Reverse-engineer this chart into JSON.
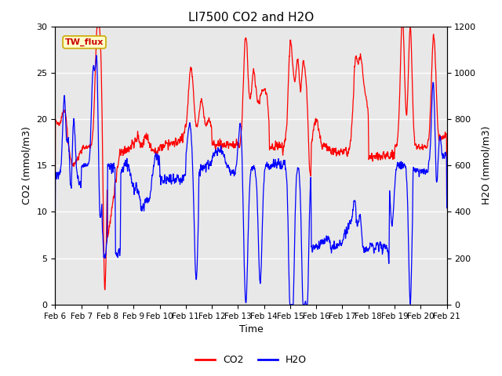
{
  "title": "LI7500 CO2 and H2O",
  "xlabel": "Time",
  "ylabel_left": "CO2 (mmol/m3)",
  "ylabel_right": "H2O (mmol/m3)",
  "legend_label": "TW_flux",
  "co2_color": "#FF0000",
  "h2o_color": "#0000FF",
  "ylim_left": [
    0,
    30
  ],
  "ylim_right": [
    0,
    1200
  ],
  "background_color": "#E8E8E8",
  "xtick_labels": [
    "Feb 6",
    "Feb 7",
    "Feb 8",
    "Feb 9",
    "Feb 10",
    "Feb 11",
    "Feb 12",
    "Feb 13",
    "Feb 14",
    "Feb 15",
    "Feb 16",
    "Feb 17",
    "Feb 18",
    "Feb 19",
    "Feb 20",
    "Feb 21"
  ],
  "legend_entries": [
    "CO2",
    "H2O"
  ],
  "title_fontsize": 11,
  "axis_fontsize": 9,
  "tick_fontsize": 7.5,
  "linewidth": 0.9,
  "grid_color": "#FFFFFF",
  "fig_bg": "#FFFFFF",
  "legend_fontsize": 9,
  "annotation_fontsize": 8,
  "annotation_facecolor": "#FFFFCC",
  "annotation_edgecolor": "#CCAA00"
}
